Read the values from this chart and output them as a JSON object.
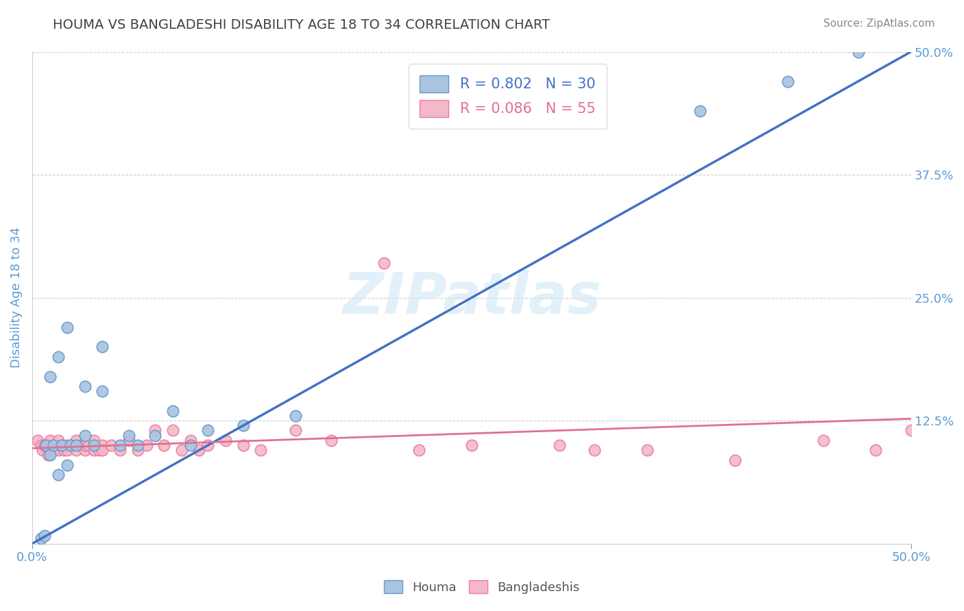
{
  "title": "HOUMA VS BANGLADESHI DISABILITY AGE 18 TO 34 CORRELATION CHART",
  "source_text": "Source: ZipAtlas.com",
  "ylabel": "Disability Age 18 to 34",
  "xlim": [
    0.0,
    0.5
  ],
  "ylim": [
    0.0,
    0.5
  ],
  "xtick_labels": [
    "0.0%",
    "50.0%"
  ],
  "ytick_labels": [
    "12.5%",
    "25.0%",
    "37.5%",
    "50.0%"
  ],
  "ytick_vals": [
    0.125,
    0.25,
    0.375,
    0.5
  ],
  "houma_color": "#a8c4e0",
  "houma_edge_color": "#6699cc",
  "bangladeshi_color": "#f4b8c8",
  "bangladeshi_edge_color": "#e87ca0",
  "houma_line_color": "#4472c4",
  "bangladeshi_line_color": "#e07090",
  "legend_r1": "R = 0.802",
  "legend_n1": "N = 30",
  "legend_r2": "R = 0.086",
  "legend_n2": "N = 55",
  "watermark_color": "#d0e8f5",
  "background_color": "#ffffff",
  "grid_color": "#cccccc",
  "title_color": "#404040",
  "axis_label_color": "#5b9bd5",
  "tick_label_color": "#5b9bd5",
  "houma_x": [
    0.005,
    0.007,
    0.008,
    0.01,
    0.01,
    0.012,
    0.015,
    0.015,
    0.017,
    0.02,
    0.02,
    0.022,
    0.025,
    0.03,
    0.03,
    0.035,
    0.04,
    0.04,
    0.05,
    0.055,
    0.06,
    0.07,
    0.08,
    0.09,
    0.1,
    0.12,
    0.15,
    0.38,
    0.43,
    0.47
  ],
  "houma_y": [
    0.005,
    0.008,
    0.1,
    0.17,
    0.09,
    0.1,
    0.19,
    0.07,
    0.1,
    0.22,
    0.08,
    0.1,
    0.1,
    0.11,
    0.16,
    0.1,
    0.155,
    0.2,
    0.1,
    0.11,
    0.1,
    0.11,
    0.135,
    0.1,
    0.115,
    0.12,
    0.13,
    0.44,
    0.47,
    0.5
  ],
  "bangladeshi_x": [
    0.003,
    0.005,
    0.006,
    0.007,
    0.008,
    0.009,
    0.01,
    0.01,
    0.012,
    0.013,
    0.015,
    0.015,
    0.017,
    0.018,
    0.02,
    0.02,
    0.022,
    0.025,
    0.025,
    0.028,
    0.03,
    0.03,
    0.032,
    0.035,
    0.035,
    0.038,
    0.04,
    0.04,
    0.045,
    0.05,
    0.055,
    0.06,
    0.065,
    0.07,
    0.075,
    0.08,
    0.085,
    0.09,
    0.095,
    0.1,
    0.11,
    0.12,
    0.13,
    0.15,
    0.17,
    0.2,
    0.22,
    0.25,
    0.3,
    0.32,
    0.35,
    0.4,
    0.45,
    0.48,
    0.5
  ],
  "bangladeshi_y": [
    0.105,
    0.1,
    0.095,
    0.1,
    0.1,
    0.09,
    0.095,
    0.105,
    0.095,
    0.1,
    0.095,
    0.105,
    0.1,
    0.095,
    0.1,
    0.095,
    0.1,
    0.095,
    0.105,
    0.1,
    0.095,
    0.1,
    0.1,
    0.095,
    0.105,
    0.095,
    0.1,
    0.095,
    0.1,
    0.095,
    0.105,
    0.095,
    0.1,
    0.115,
    0.1,
    0.115,
    0.095,
    0.105,
    0.095,
    0.1,
    0.105,
    0.1,
    0.095,
    0.115,
    0.105,
    0.285,
    0.095,
    0.1,
    0.1,
    0.095,
    0.095,
    0.085,
    0.105,
    0.095,
    0.115
  ]
}
